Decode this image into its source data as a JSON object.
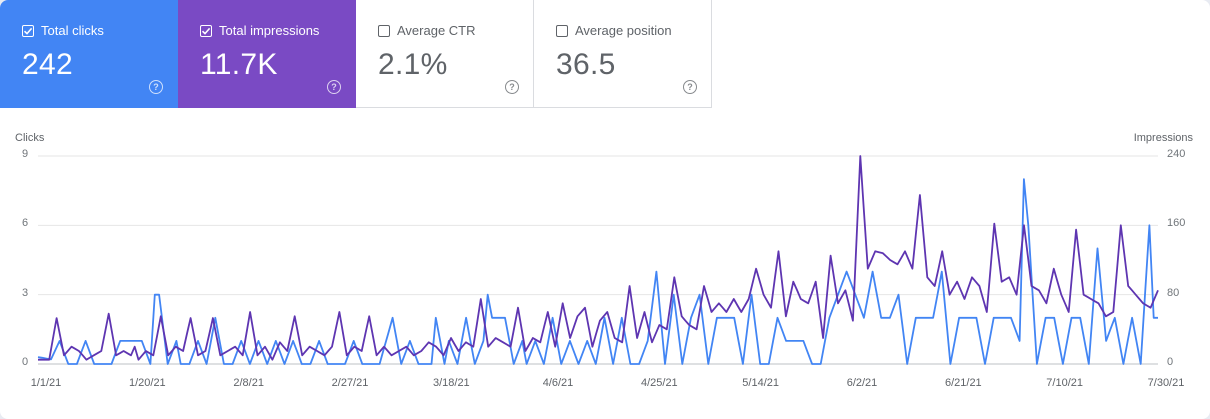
{
  "cards": [
    {
      "label": "Total clicks",
      "value": "242",
      "checked": true,
      "color": "#4285f4"
    },
    {
      "label": "Total impressions",
      "value": "11.7K",
      "checked": true,
      "color": "#7a4ac4"
    },
    {
      "label": "Average CTR",
      "value": "2.1%",
      "checked": false
    },
    {
      "label": "Average position",
      "value": "36.5",
      "checked": false
    }
  ],
  "help_icon": "question-mark-circle",
  "chart_data": {
    "type": "line",
    "left_axis": {
      "title": "Clicks",
      "ticks": [
        "0",
        "3",
        "6",
        "9"
      ],
      "range": [
        0,
        9
      ]
    },
    "right_axis": {
      "title": "Impressions",
      "ticks": [
        "0",
        "80",
        "160",
        "240"
      ],
      "range": [
        0,
        240
      ]
    },
    "x_ticks": [
      "1/1/21",
      "1/20/21",
      "2/8/21",
      "2/27/21",
      "3/18/21",
      "4/6/21",
      "4/25/21",
      "5/14/21",
      "6/2/21",
      "6/21/21",
      "7/10/21",
      "7/30/21"
    ],
    "x_range": [
      "1/1/21",
      "7/30/21"
    ],
    "grid": true,
    "series": [
      {
        "name": "Total clicks",
        "axis": "left",
        "color": "#4285f4",
        "anchors": [
          [
            0,
            0.3
          ],
          [
            3,
            0.2
          ],
          [
            5,
            1
          ],
          [
            7,
            0
          ],
          [
            9,
            0
          ],
          [
            11,
            1
          ],
          [
            13,
            0
          ],
          [
            17,
            0
          ],
          [
            19,
            1
          ],
          [
            21,
            1
          ],
          [
            24,
            1
          ],
          [
            26,
            0
          ],
          [
            27,
            3
          ],
          [
            28,
            3
          ],
          [
            30,
            0
          ],
          [
            32,
            1
          ],
          [
            33,
            0
          ],
          [
            35,
            0
          ],
          [
            37,
            1
          ],
          [
            39,
            0
          ],
          [
            41,
            2
          ],
          [
            43,
            0
          ],
          [
            45,
            0
          ],
          [
            47,
            1
          ],
          [
            49,
            0
          ],
          [
            51,
            1
          ],
          [
            53,
            0
          ],
          [
            55,
            1
          ],
          [
            57,
            0
          ],
          [
            59,
            1
          ],
          [
            61,
            0
          ],
          [
            63,
            0
          ],
          [
            65,
            1
          ],
          [
            67,
            0
          ],
          [
            71,
            0
          ],
          [
            73,
            1
          ],
          [
            75,
            0
          ],
          [
            79,
            0
          ],
          [
            82,
            2
          ],
          [
            84,
            0
          ],
          [
            86,
            1
          ],
          [
            88,
            0
          ],
          [
            91,
            0
          ],
          [
            92,
            2
          ],
          [
            94,
            0
          ],
          [
            95,
            1
          ],
          [
            97,
            0
          ],
          [
            99,
            2
          ],
          [
            101,
            0
          ],
          [
            103,
            1
          ],
          [
            104,
            3
          ],
          [
            105,
            2
          ],
          [
            108,
            2
          ],
          [
            110,
            0
          ],
          [
            112,
            1
          ],
          [
            113,
            0
          ],
          [
            115,
            1
          ],
          [
            117,
            0
          ],
          [
            119,
            2
          ],
          [
            121,
            0
          ],
          [
            123,
            1
          ],
          [
            125,
            0
          ],
          [
            127,
            1
          ],
          [
            129,
            0
          ],
          [
            131,
            2
          ],
          [
            133,
            0
          ],
          [
            135,
            2
          ],
          [
            137,
            0
          ],
          [
            139,
            0
          ],
          [
            141,
            1
          ],
          [
            143,
            4
          ],
          [
            145,
            0
          ],
          [
            147,
            3
          ],
          [
            149,
            0
          ],
          [
            151,
            2
          ],
          [
            153,
            3
          ],
          [
            155,
            0
          ],
          [
            157,
            2
          ],
          [
            159,
            2
          ],
          [
            161,
            2
          ],
          [
            163,
            0
          ],
          [
            165,
            3
          ],
          [
            167,
            0
          ],
          [
            169,
            0
          ],
          [
            171,
            2
          ],
          [
            173,
            1
          ],
          [
            177,
            1
          ],
          [
            179,
            0
          ],
          [
            181,
            0
          ],
          [
            183,
            2
          ],
          [
            185,
            3
          ],
          [
            187,
            4
          ],
          [
            189,
            3
          ],
          [
            191,
            2
          ],
          [
            193,
            4
          ],
          [
            195,
            2
          ],
          [
            197,
            2
          ],
          [
            199,
            3
          ],
          [
            201,
            0
          ],
          [
            203,
            2
          ],
          [
            205,
            2
          ],
          [
            207,
            2
          ],
          [
            209,
            4
          ],
          [
            211,
            0
          ],
          [
            213,
            2
          ],
          [
            215,
            2
          ],
          [
            217,
            2
          ],
          [
            219,
            0
          ],
          [
            221,
            2
          ],
          [
            223,
            2
          ],
          [
            225,
            2
          ],
          [
            227,
            1
          ],
          [
            228,
            8
          ],
          [
            229,
            6
          ],
          [
            231,
            0
          ],
          [
            233,
            2
          ],
          [
            235,
            2
          ],
          [
            237,
            0
          ],
          [
            239,
            2
          ],
          [
            241,
            2
          ],
          [
            243,
            0
          ],
          [
            245,
            5
          ],
          [
            247,
            1
          ],
          [
            249,
            2
          ],
          [
            251,
            0
          ],
          [
            253,
            2
          ],
          [
            255,
            0
          ],
          [
            257,
            6
          ],
          [
            258,
            2
          ],
          [
            259,
            2
          ]
        ]
      },
      {
        "name": "Total impressions",
        "axis": "right",
        "color": "#5e35b1",
        "anchors": [
          [
            0,
            5
          ],
          [
            3,
            5
          ],
          [
            5,
            53
          ],
          [
            7,
            10
          ],
          [
            9,
            20
          ],
          [
            11,
            15
          ],
          [
            13,
            5
          ],
          [
            15,
            10
          ],
          [
            17,
            15
          ],
          [
            19,
            58
          ],
          [
            21,
            10
          ],
          [
            23,
            15
          ],
          [
            25,
            10
          ],
          [
            26,
            20
          ],
          [
            27,
            5
          ],
          [
            29,
            15
          ],
          [
            31,
            10
          ],
          [
            33,
            55
          ],
          [
            35,
            10
          ],
          [
            37,
            20
          ],
          [
            39,
            15
          ],
          [
            41,
            53
          ],
          [
            43,
            10
          ],
          [
            45,
            15
          ],
          [
            47,
            53
          ],
          [
            49,
            10
          ],
          [
            51,
            15
          ],
          [
            53,
            20
          ],
          [
            55,
            10
          ],
          [
            57,
            60
          ],
          [
            59,
            10
          ],
          [
            61,
            20
          ],
          [
            63,
            5
          ],
          [
            65,
            25
          ],
          [
            67,
            15
          ],
          [
            69,
            55
          ],
          [
            71,
            10
          ],
          [
            73,
            20
          ],
          [
            75,
            15
          ],
          [
            77,
            10
          ],
          [
            79,
            20
          ],
          [
            81,
            60
          ],
          [
            83,
            10
          ],
          [
            85,
            20
          ],
          [
            87,
            15
          ],
          [
            89,
            55
          ],
          [
            91,
            10
          ],
          [
            93,
            20
          ],
          [
            95,
            10
          ],
          [
            97,
            15
          ],
          [
            99,
            20
          ],
          [
            101,
            10
          ],
          [
            103,
            15
          ],
          [
            105,
            25
          ],
          [
            107,
            20
          ],
          [
            109,
            10
          ],
          [
            111,
            30
          ],
          [
            113,
            15
          ],
          [
            115,
            25
          ],
          [
            117,
            20
          ],
          [
            119,
            75
          ],
          [
            121,
            20
          ],
          [
            123,
            30
          ],
          [
            125,
            25
          ],
          [
            127,
            20
          ],
          [
            129,
            65
          ],
          [
            131,
            15
          ],
          [
            133,
            30
          ],
          [
            135,
            25
          ],
          [
            137,
            60
          ],
          [
            139,
            20
          ],
          [
            141,
            70
          ],
          [
            143,
            30
          ],
          [
            145,
            55
          ],
          [
            147,
            65
          ],
          [
            149,
            20
          ],
          [
            151,
            50
          ],
          [
            153,
            60
          ],
          [
            155,
            30
          ],
          [
            157,
            25
          ],
          [
            159,
            90
          ],
          [
            161,
            30
          ],
          [
            163,
            60
          ],
          [
            165,
            25
          ],
          [
            167,
            45
          ],
          [
            169,
            40
          ],
          [
            171,
            100
          ],
          [
            173,
            55
          ],
          [
            175,
            45
          ],
          [
            177,
            40
          ],
          [
            179,
            90
          ],
          [
            181,
            60
          ],
          [
            183,
            70
          ],
          [
            185,
            60
          ],
          [
            187,
            75
          ],
          [
            189,
            60
          ],
          [
            191,
            75
          ],
          [
            193,
            110
          ],
          [
            195,
            80
          ],
          [
            197,
            65
          ],
          [
            199,
            130
          ],
          [
            201,
            55
          ],
          [
            203,
            95
          ],
          [
            205,
            75
          ],
          [
            207,
            70
          ],
          [
            209,
            95
          ],
          [
            211,
            30
          ],
          [
            213,
            125
          ],
          [
            215,
            70
          ],
          [
            217,
            85
          ],
          [
            219,
            50
          ],
          [
            221,
            240
          ],
          [
            223,
            110
          ],
          [
            225,
            130
          ],
          [
            227,
            128
          ],
          [
            229,
            120
          ],
          [
            231,
            115
          ],
          [
            233,
            130
          ],
          [
            235,
            110
          ],
          [
            237,
            195
          ],
          [
            239,
            100
          ],
          [
            241,
            90
          ],
          [
            243,
            130
          ],
          [
            245,
            80
          ],
          [
            247,
            95
          ],
          [
            249,
            75
          ],
          [
            251,
            100
          ],
          [
            253,
            90
          ],
          [
            255,
            60
          ],
          [
            257,
            162
          ],
          [
            259,
            95
          ],
          [
            261,
            100
          ],
          [
            263,
            80
          ],
          [
            265,
            160
          ],
          [
            267,
            90
          ],
          [
            269,
            85
          ],
          [
            271,
            70
          ],
          [
            273,
            110
          ],
          [
            275,
            80
          ],
          [
            277,
            60
          ],
          [
            279,
            155
          ],
          [
            281,
            80
          ],
          [
            283,
            75
          ],
          [
            285,
            70
          ],
          [
            287,
            55
          ],
          [
            289,
            60
          ],
          [
            291,
            160
          ],
          [
            293,
            90
          ],
          [
            295,
            80
          ],
          [
            297,
            70
          ],
          [
            299,
            65
          ],
          [
            301,
            85
          ]
        ]
      }
    ]
  }
}
